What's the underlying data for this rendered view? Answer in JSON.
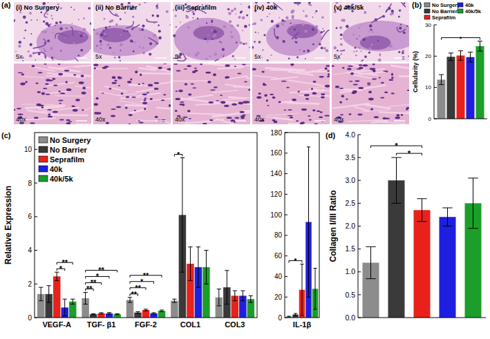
{
  "panel_a": {
    "panel_label": "(a)",
    "images": [
      {
        "title": "(i) No Surgery",
        "magnifications": [
          "5x",
          "40x"
        ]
      },
      {
        "title": "(ii) No Barrier",
        "magnifications": [
          "5x",
          "40x"
        ]
      },
      {
        "title": "(iii) Seprafilm",
        "magnifications": [
          "5x",
          "40x"
        ]
      },
      {
        "title": "(iv) 40k",
        "magnifications": [
          "5x",
          "40x"
        ]
      },
      {
        "title": "(v) 40k/5k",
        "magnifications": [
          "5x",
          "40x"
        ]
      }
    ]
  },
  "chart_data": [
    {
      "type": "bar",
      "panel_label": "(b)",
      "y_label": "Cellularity (%)",
      "categories": [
        null
      ],
      "series": [
        {
          "name": "No Surgery",
          "color": "#8c8c8c",
          "values": [
            12.5
          ],
          "errors": [
            1.6
          ]
        },
        {
          "name": "No Barrier",
          "color": "#3a3a3a",
          "values": [
            19.8
          ],
          "errors": [
            1.2
          ]
        },
        {
          "name": "Seprafilm",
          "color": "#e8221a",
          "values": [
            20.2
          ],
          "errors": [
            1.5
          ]
        },
        {
          "name": "40k",
          "color": "#1f1fe0",
          "values": [
            19.7
          ],
          "errors": [
            1.6
          ]
        },
        {
          "name": "40k/5k",
          "color": "#1c9e2a",
          "values": [
            23.2
          ],
          "errors": [
            1.6
          ]
        }
      ],
      "ylim": [
        0,
        30
      ],
      "yticks": [
        0,
        10,
        20,
        30
      ],
      "legend": "top",
      "annotations": [
        {
          "category": 0,
          "from": 0,
          "to": 4,
          "label": "*"
        }
      ]
    },
    {
      "type": "bar",
      "panel_label": "(c)",
      "y_label": "Relative Expression",
      "categories": [
        "VEGF-A",
        "TGF- β1",
        "FGF-2",
        "COL1",
        "COL3"
      ],
      "series": [
        {
          "name": "No Surgery",
          "color": "#8c8c8c",
          "values": [
            1.4,
            1.15,
            1.05,
            1.0,
            1.2
          ],
          "errors": [
            0.4,
            0.35,
            0.15,
            0.1,
            0.5
          ]
        },
        {
          "name": "No Barrier",
          "color": "#3a3a3a",
          "values": [
            1.4,
            0.2,
            0.3,
            6.1,
            1.8
          ],
          "errors": [
            0.5,
            0.03,
            0.05,
            3.4,
            1.0
          ]
        },
        {
          "name": "Seprafilm",
          "color": "#e8221a",
          "values": [
            2.45,
            0.25,
            0.45,
            3.2,
            1.3
          ],
          "errors": [
            0.25,
            0.04,
            0.05,
            1.0,
            0.3
          ]
        },
        {
          "name": "40k",
          "color": "#1f1fe0",
          "values": [
            0.6,
            0.25,
            0.25,
            3.0,
            1.3
          ],
          "errors": [
            0.5,
            0.05,
            0.04,
            1.2,
            0.3
          ]
        },
        {
          "name": "40k/5k",
          "color": "#1c9e2a",
          "values": [
            0.95,
            0.2,
            0.4,
            3.0,
            1.1
          ],
          "errors": [
            0.15,
            0.03,
            0.05,
            1.0,
            0.2
          ]
        }
      ],
      "ylim": [
        0,
        11
      ],
      "yticks": [
        0,
        2,
        4,
        6,
        8,
        10
      ],
      "legend": "upper left",
      "annotations": [
        {
          "category": 0,
          "from": 2,
          "to": 3,
          "label": "*"
        },
        {
          "category": 0,
          "from": 2,
          "to": 4,
          "label": "**"
        },
        {
          "category": 1,
          "from": 0,
          "to": 1,
          "label": "**"
        },
        {
          "category": 1,
          "from": 0,
          "to": 2,
          "label": "**"
        },
        {
          "category": 1,
          "from": 0,
          "to": 3,
          "label": "*"
        },
        {
          "category": 1,
          "from": 0,
          "to": 4,
          "label": "**"
        },
        {
          "category": 2,
          "from": 0,
          "to": 1,
          "label": "**"
        },
        {
          "category": 2,
          "from": 0,
          "to": 2,
          "label": "**"
        },
        {
          "category": 2,
          "from": 0,
          "to": 3,
          "label": "*"
        },
        {
          "category": 2,
          "from": 0,
          "to": 4,
          "label": "**"
        },
        {
          "category": 3,
          "from": 0,
          "to": 1,
          "label": "*"
        }
      ]
    },
    {
      "type": "bar",
      "categories": [
        "IL-1β"
      ],
      "series": [
        {
          "color": "#8c8c8c",
          "values": [
            1.0
          ],
          "errors": [
            0.3
          ]
        },
        {
          "color": "#3a3a3a",
          "values": [
            3.0
          ],
          "errors": [
            1.0
          ]
        },
        {
          "color": "#e8221a",
          "values": [
            27
          ],
          "errors": [
            25
          ]
        },
        {
          "color": "#1f1fe0",
          "values": [
            93
          ],
          "errors": [
            73
          ]
        },
        {
          "color": "#1c9e2a",
          "values": [
            28
          ],
          "errors": [
            20
          ]
        }
      ],
      "ylim": [
        0,
        180
      ],
      "yticks": [
        0,
        20,
        40,
        60,
        80,
        100,
        120,
        140,
        160,
        180
      ],
      "annotations": [
        {
          "category": 0,
          "from": 0,
          "to": 2,
          "label": "*"
        }
      ]
    },
    {
      "type": "bar",
      "panel_label": "(d)",
      "y_label": "Collagen I/III Ratio",
      "categories": [
        null,
        null,
        null,
        null,
        null
      ],
      "values": [
        1.2,
        3.0,
        2.35,
        2.2,
        2.5
      ],
      "errors": [
        0.35,
        0.5,
        0.25,
        0.2,
        0.55
      ],
      "colors": [
        "#8c8c8c",
        "#3a3a3a",
        "#e8221a",
        "#1f1fe0",
        "#1c9e2a"
      ],
      "ylim": [
        0,
        4
      ],
      "yticks": [
        {
          "value": 0,
          "label": "0.0"
        },
        0.5,
        {
          "value": 1,
          "label": "1.0"
        },
        1.5,
        {
          "value": 2,
          "label": "2.0"
        },
        2.5,
        {
          "value": 3,
          "label": "3.0"
        },
        3.5,
        {
          "value": 4,
          "label": "4.0"
        }
      ],
      "annotations": [
        {
          "from": 1,
          "to": 2,
          "label": "*"
        },
        {
          "from": 0,
          "to": 2,
          "label": "*"
        }
      ]
    }
  ]
}
